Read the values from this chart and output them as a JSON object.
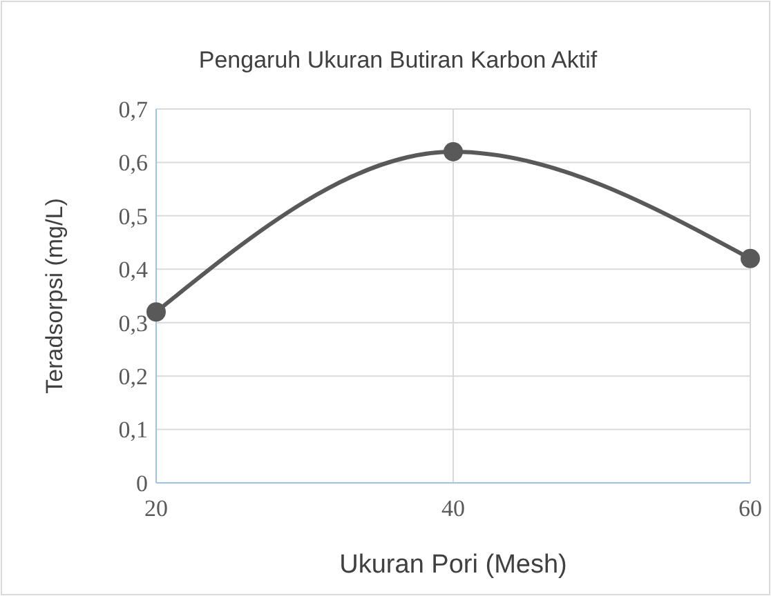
{
  "chart_data": {
    "type": "line",
    "title": "Pengaruh Ukuran Butiran Karbon Aktif",
    "xlabel": "Ukuran Pori (Mesh)",
    "ylabel": "Teradsorpsi (mg/L)",
    "x": [
      20,
      40,
      60
    ],
    "series": [
      {
        "color": "#595959",
        "values": [
          0.32,
          0.62,
          0.42
        ]
      }
    ],
    "xlim": [
      20,
      60
    ],
    "xticks": [
      20,
      40,
      60
    ],
    "ylim": [
      0,
      0.7
    ],
    "yticks": [
      0,
      {
        "value": 0.1,
        "label": "0,1"
      },
      {
        "value": 0.2,
        "label": "0,2"
      },
      {
        "value": 0.3,
        "label": "0,3"
      },
      {
        "value": 0.4,
        "label": "0,4"
      },
      {
        "value": 0.5,
        "label": "0,5"
      },
      {
        "value": 0.6,
        "label": "0,6"
      },
      {
        "value": 0.7,
        "label": "0,7"
      }
    ],
    "grid": true,
    "marker": "circle",
    "line_style": "solid"
  }
}
